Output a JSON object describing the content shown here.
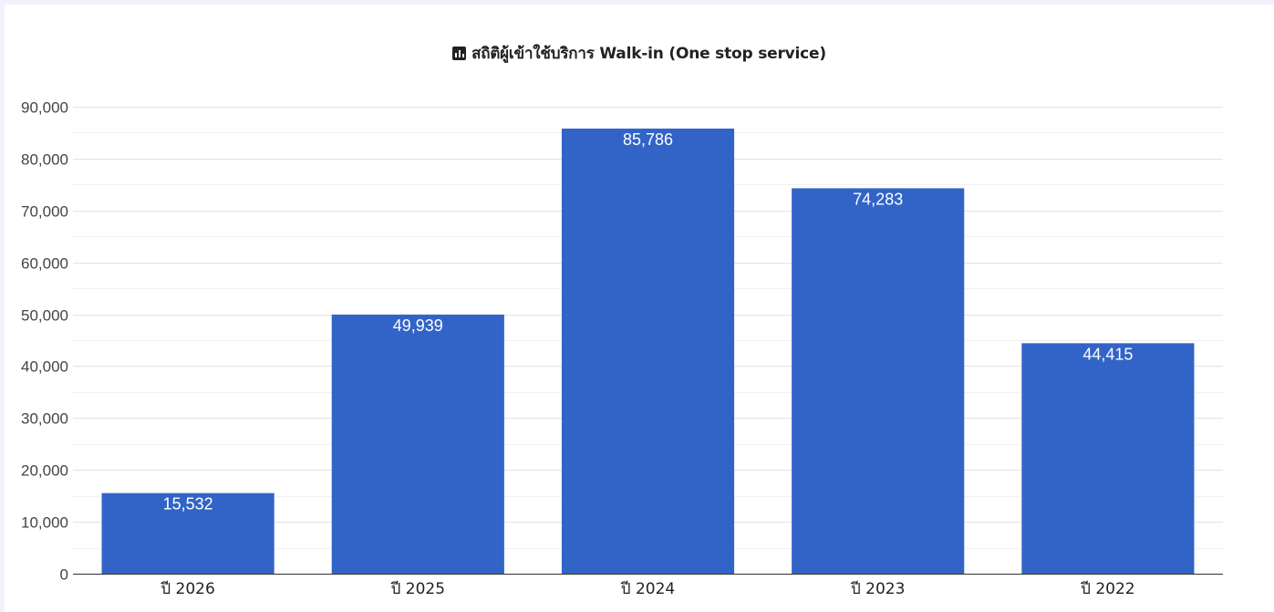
{
  "chart_data": {
    "type": "bar",
    "title": "สถิติผู้เข้าใช้บริการ Walk-in (One stop service)",
    "title_icon": "bar-chart-icon",
    "categories": [
      "ปี 2026",
      "ปี 2025",
      "ปี 2024",
      "ปี 2023",
      "ปี 2022"
    ],
    "values": [
      15532,
      49939,
      85786,
      74283,
      44415
    ],
    "data_labels": [
      "15,532",
      "49,939",
      "85,786",
      "74,283",
      "44,415"
    ],
    "y_ticks": [
      0,
      10000,
      20000,
      30000,
      40000,
      50000,
      60000,
      70000,
      80000,
      90000
    ],
    "y_tick_labels": [
      "0",
      "10,000",
      "20,000",
      "30,000",
      "40,000",
      "50,000",
      "60,000",
      "70,000",
      "80,000",
      "90,000"
    ],
    "ylim": [
      0,
      90000
    ],
    "xlabel": "",
    "ylabel": "",
    "grid": true,
    "legend": "none",
    "bar_color": "#3264c8",
    "background_color": "#ffffff",
    "page_background_color": "#f3effd"
  }
}
